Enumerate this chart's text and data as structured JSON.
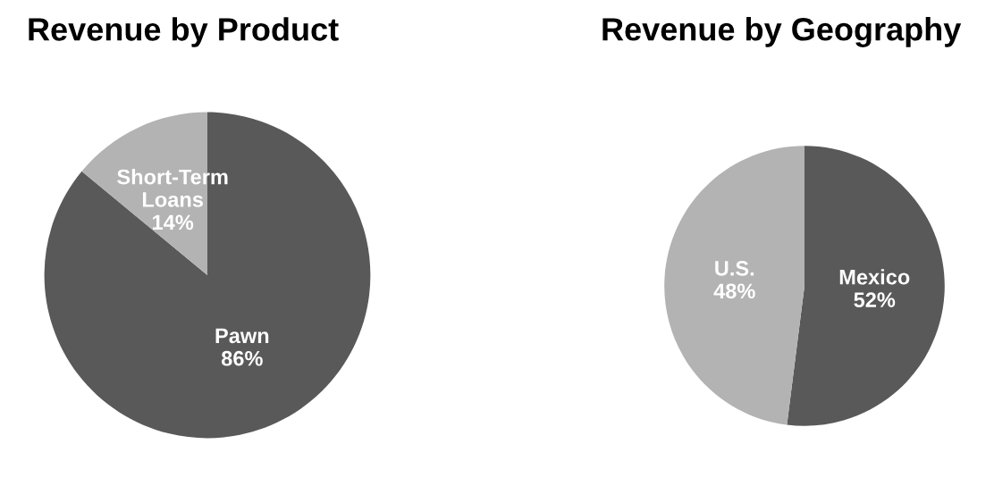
{
  "chart_data": [
    {
      "type": "pie",
      "title": "Revenue by Product",
      "categories": [
        "Pawn",
        "Short-Term\nLoans"
      ],
      "values": [
        86,
        14
      ],
      "colors": [
        "#595959",
        "#b3b3b3"
      ],
      "value_labels": [
        "86%",
        "14%"
      ]
    },
    {
      "type": "pie",
      "title": "Revenue by Geography",
      "categories": [
        "Mexico",
        "U.S."
      ],
      "values": [
        52,
        48
      ],
      "colors": [
        "#595959",
        "#b3b3b3"
      ],
      "value_labels": [
        "52%",
        "48%"
      ]
    }
  ]
}
